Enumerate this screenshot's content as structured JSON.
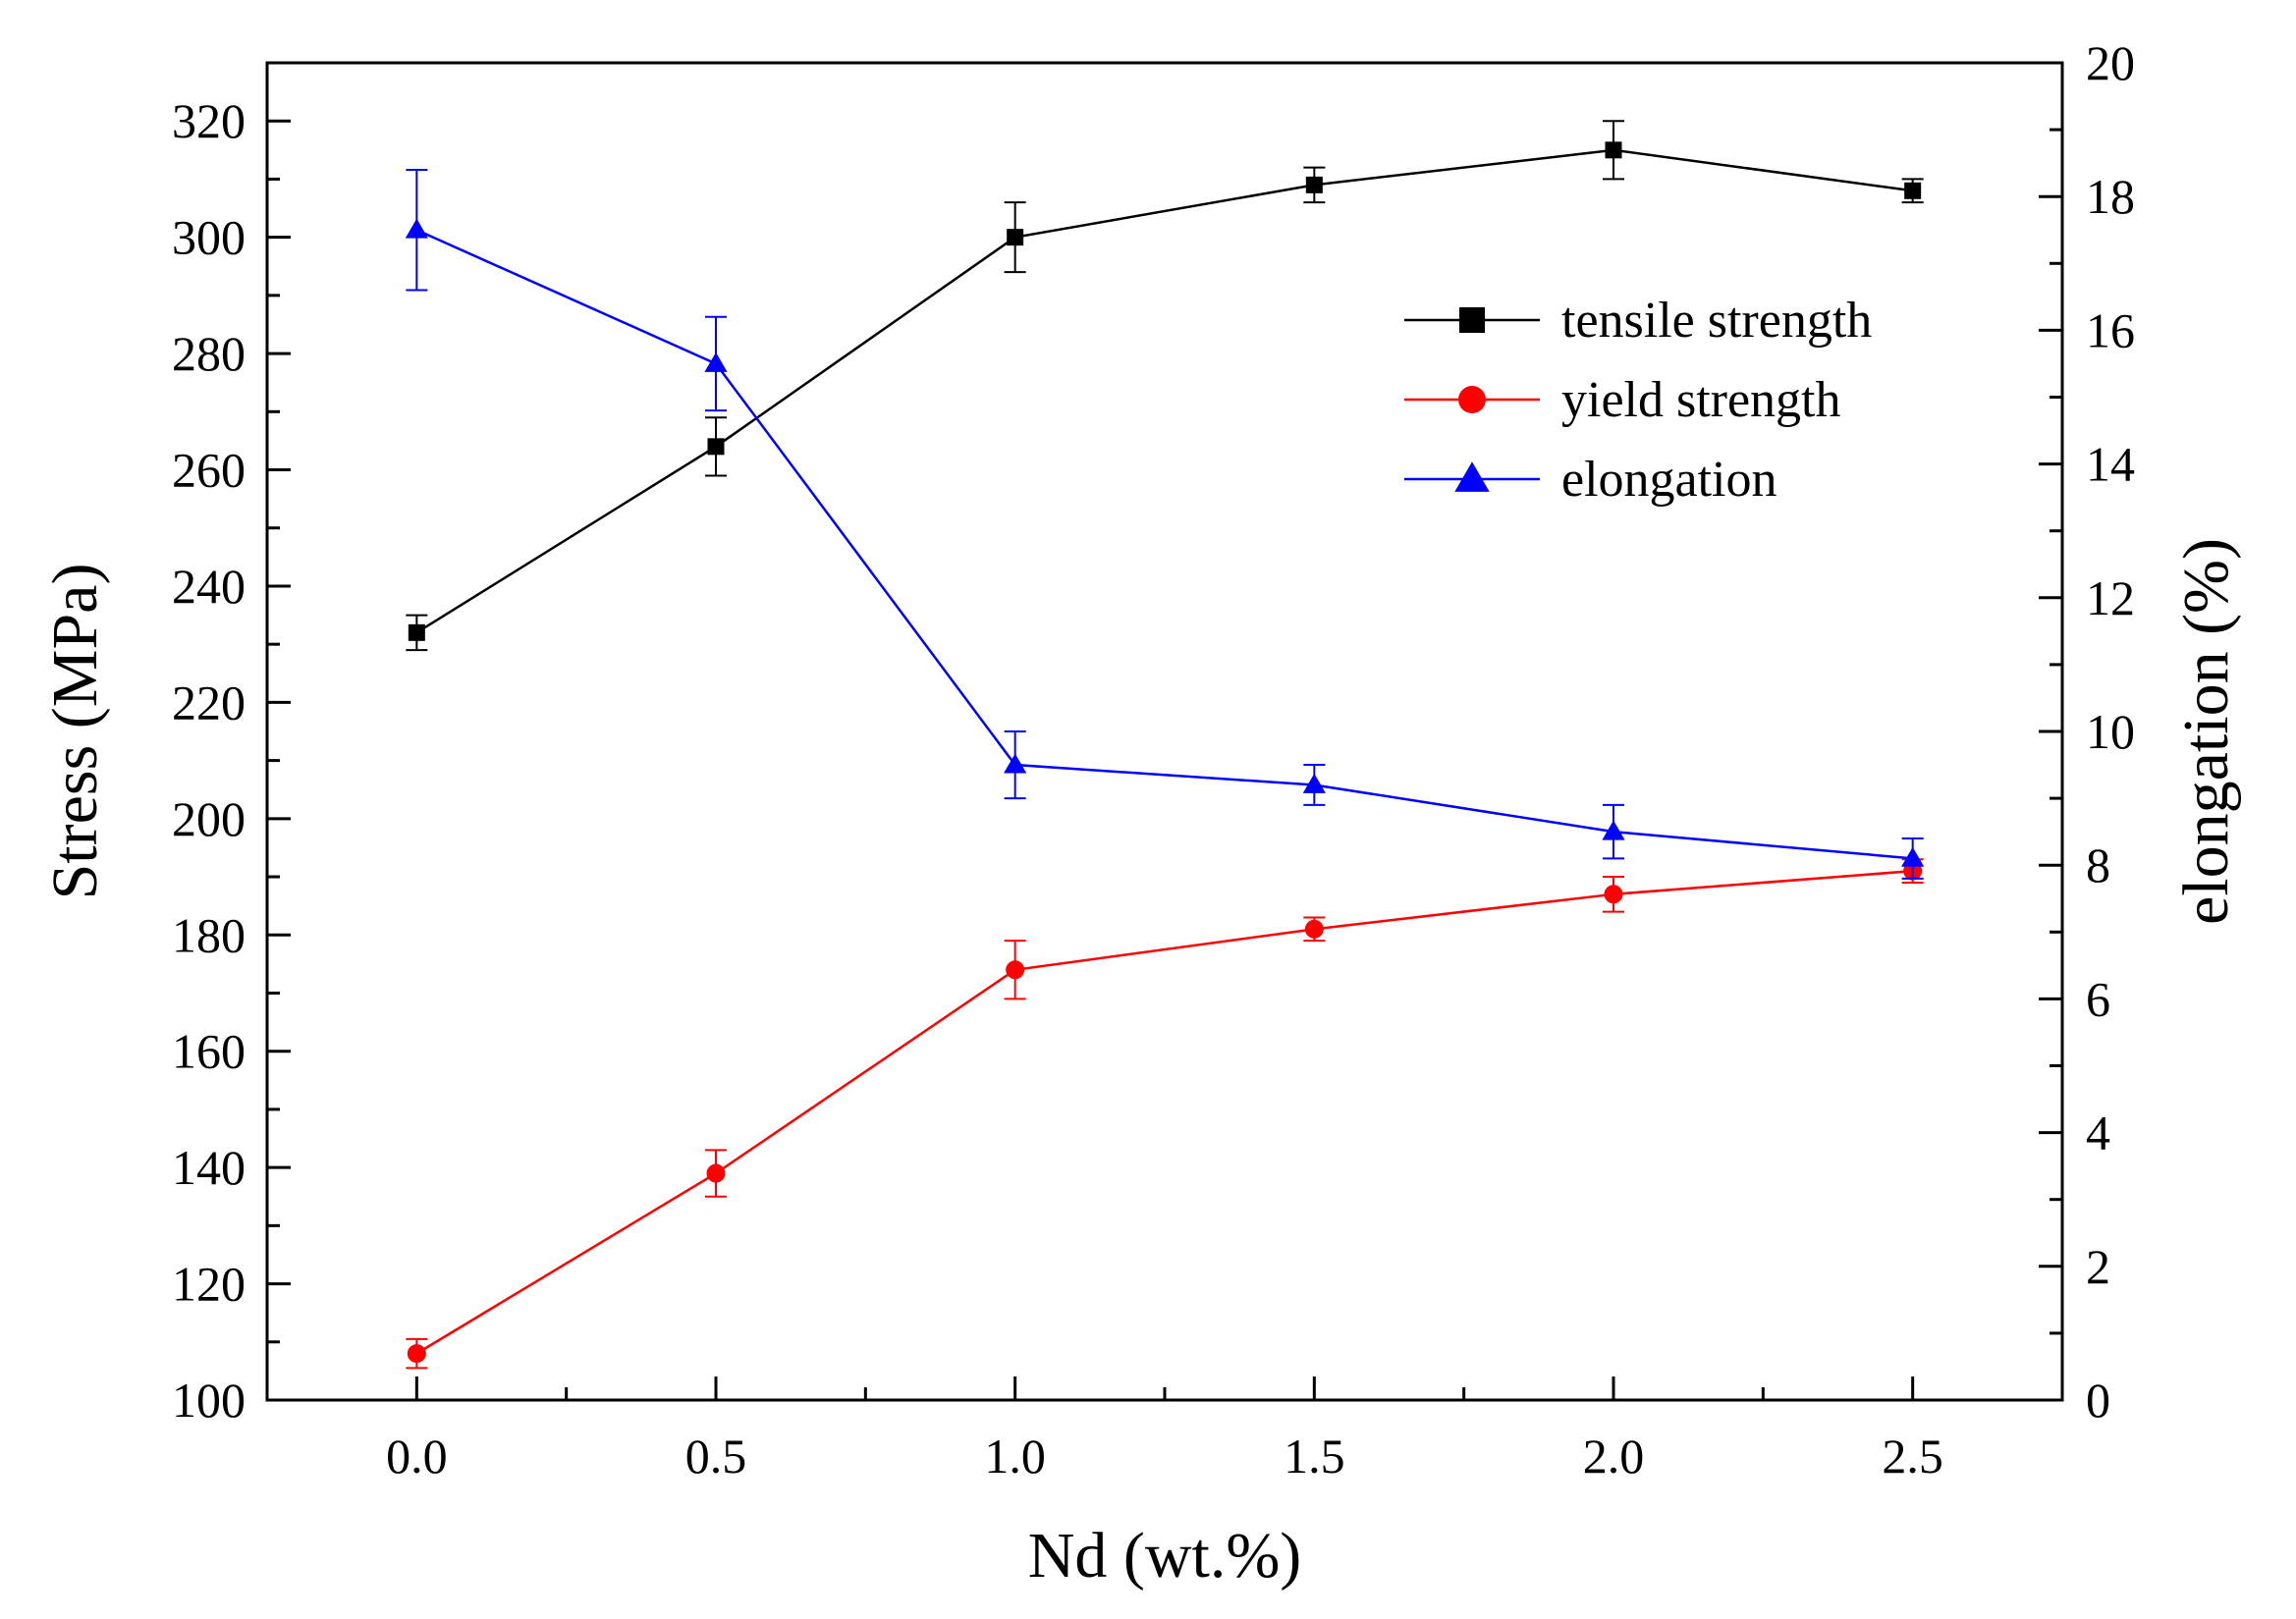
{
  "chart_data": {
    "type": "line",
    "x": [
      0.0,
      0.5,
      1.0,
      1.5,
      2.0,
      2.5
    ],
    "xlabel": "Nd (wt.%)",
    "ylabel": "Stress (MPa)",
    "y2label": "elongation (%)",
    "xlim": [
      -0.25,
      2.75
    ],
    "ylim": [
      100,
      330
    ],
    "y2lim": [
      0,
      20
    ],
    "xticks": [
      0.0,
      0.5,
      1.0,
      1.5,
      2.0,
      2.5
    ],
    "xtick_labels": [
      "0.0",
      "0.5",
      "1.0",
      "1.5",
      "2.0",
      "2.5"
    ],
    "yticks": [
      100,
      120,
      140,
      160,
      180,
      200,
      220,
      240,
      260,
      280,
      300,
      320
    ],
    "ytick_labels": [
      "100",
      "120",
      "140",
      "160",
      "180",
      "200",
      "220",
      "240",
      "260",
      "280",
      "300",
      "320"
    ],
    "y2ticks": [
      0,
      2,
      4,
      6,
      8,
      10,
      12,
      14,
      16,
      18,
      20
    ],
    "y2tick_labels": [
      "0",
      "2",
      "4",
      "6",
      "8",
      "10",
      "12",
      "14",
      "16",
      "18",
      "20"
    ],
    "legend_position": "upper-right",
    "series": [
      {
        "name": "tensile strength",
        "axis": "left",
        "marker": "square",
        "color": "#000000",
        "values": [
          232,
          264,
          300,
          309,
          315,
          308
        ],
        "errors": [
          3,
          5,
          6,
          3,
          5,
          2
        ]
      },
      {
        "name": "yield strength",
        "axis": "left",
        "marker": "circle",
        "color": "#ff0000",
        "values": [
          108,
          139,
          174,
          181,
          187,
          191
        ],
        "errors": [
          2.5,
          4,
          5,
          2,
          3,
          2
        ]
      },
      {
        "name": "elongation",
        "axis": "right",
        "marker": "triangle",
        "color": "#0000ff",
        "values": [
          17.5,
          15.5,
          9.5,
          9.2,
          8.5,
          8.1
        ],
        "errors": [
          0.9,
          0.7,
          0.5,
          0.3,
          0.4,
          0.3
        ]
      }
    ]
  }
}
